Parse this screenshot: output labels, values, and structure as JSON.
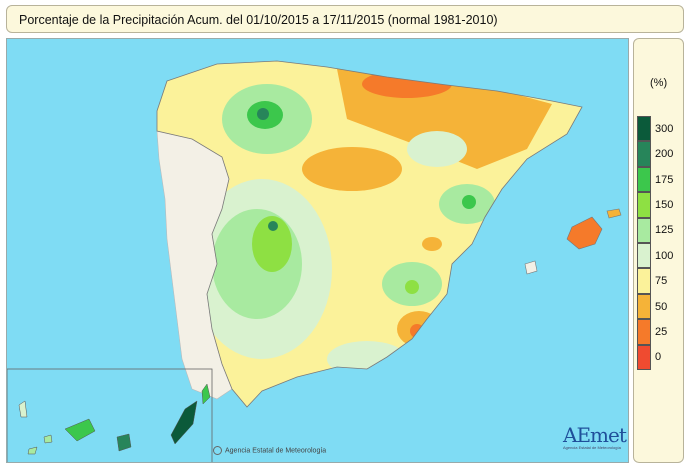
{
  "title": "Porcentaje de la Precipitación Acum. del 01/10/2015 a  17/11/2015  (normal 1981-2010)",
  "legend": {
    "unit": "(%)",
    "classes": [
      {
        "label": "300",
        "color": "#0b5a3a"
      },
      {
        "label": "200",
        "color": "#27855a"
      },
      {
        "label": "175",
        "color": "#3cc74c"
      },
      {
        "label": "150",
        "color": "#8ee043"
      },
      {
        "label": "125",
        "color": "#a8eaa0"
      },
      {
        "label": "100",
        "color": "#d9f2cf"
      },
      {
        "label": "75",
        "color": "#fbf29a"
      },
      {
        "label": "50",
        "color": "#f5b338"
      },
      {
        "label": "25",
        "color": "#f57a2a"
      },
      {
        "label": "0",
        "color": "#ef4b30"
      }
    ]
  },
  "credit": "Agencia Estatal de Meteorología",
  "logo": {
    "text": "AEmet",
    "subtitle": "Agencia Estatal de Meteorología"
  },
  "colors": {
    "sea": "#7fdcf4",
    "panel": "#fcf8dc",
    "border": "#b8b39a"
  }
}
